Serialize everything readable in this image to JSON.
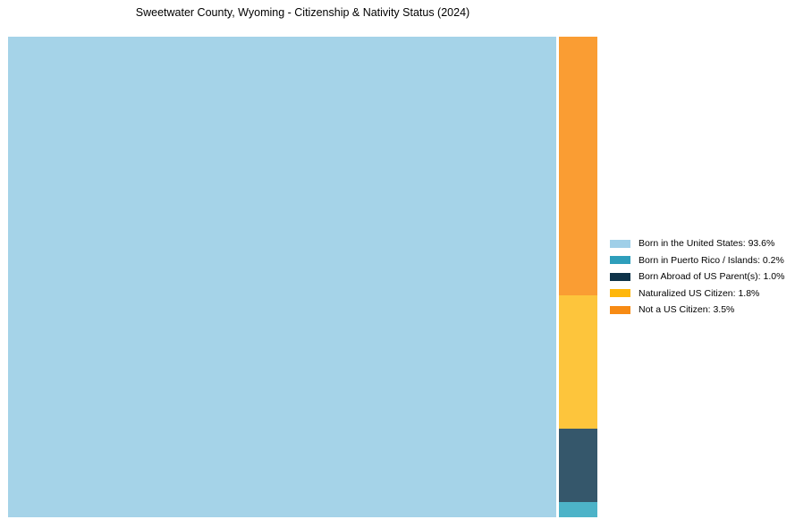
{
  "title": "Sweetwater County, Wyoming - Citizenship & Nativity Status (2024)",
  "chart_data": {
    "type": "treemap",
    "title": "Sweetwater County, Wyoming - Citizenship & Nativity Status (2024)",
    "unit": "percent",
    "legend_position": "right-center",
    "layout": "largest category fills the large left block; remaining categories stacked top-to-bottom in descending order in a narrow right column; thin white gap between left block and right column; no axes or gridlines",
    "background_color": "#FFFFFF",
    "items": [
      {
        "label": "Born in the United States",
        "value": 93.6,
        "legend_label": "Born in the United States: 93.6%",
        "legend_color": "#9FCFE8",
        "block_color": "#A5D3E8"
      },
      {
        "label": "Born in Puerto Rico / Islands",
        "value": 0.2,
        "legend_label": "Born in Puerto Rico / Islands: 0.2%",
        "legend_color": "#2E9EBB",
        "block_color": "#4DB3C8"
      },
      {
        "label": "Born Abroad of US Parent(s)",
        "value": 1.0,
        "legend_label": "Born Abroad of US Parent(s): 1.0%",
        "legend_color": "#0E3349",
        "block_color": "#35576B"
      },
      {
        "label": "Naturalized US Citizen",
        "value": 1.8,
        "legend_label": "Naturalized US Citizen: 1.8%",
        "legend_color": "#FEB70B",
        "block_color": "#FDC53C"
      },
      {
        "label": "Not a US Citizen",
        "value": 3.5,
        "legend_label": "Not a US Citizen: 3.5%",
        "legend_color": "#F78B14",
        "block_color": "#FA9D33"
      }
    ]
  }
}
